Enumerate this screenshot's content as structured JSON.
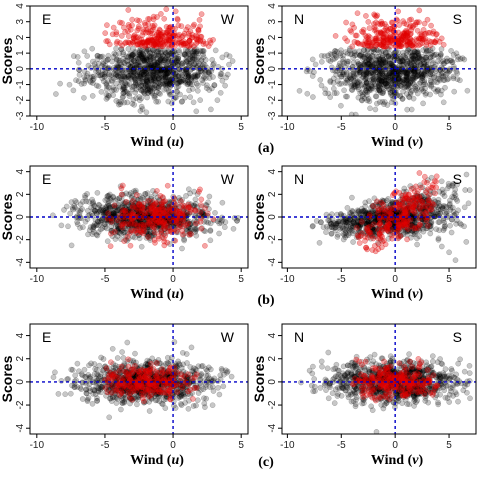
{
  "figure": {
    "rows": [
      {
        "label": "(a)"
      },
      {
        "label": "(b)"
      },
      {
        "label": "(c)"
      }
    ]
  },
  "colors": {
    "background_points": "#000000",
    "highlight_points": "#e00000",
    "reference_line": "#0000c8",
    "axis": "#000000"
  },
  "chart_data": [
    {
      "type": "scatter",
      "panel": "a-u",
      "xlabel_main": "Wind (",
      "xlabel_var": "u",
      "xlabel_end": ")",
      "ylabel": "Scores",
      "corner_left": "E",
      "corner_right": "W",
      "xlim": [
        -10.5,
        5.5
      ],
      "ylim": [
        -3,
        4
      ],
      "xticks": [
        -10,
        -5,
        0,
        5
      ],
      "yticks": [
        -3,
        -2,
        -1,
        0,
        1,
        2,
        3,
        4
      ],
      "reference_lines": {
        "x": 0,
        "y": 0
      },
      "series": [
        {
          "color": "black",
          "x_range": [
            -9,
            4.8
          ],
          "center_x": -1.5,
          "center_y": 0
        },
        {
          "color": "red",
          "x_range": [
            -5,
            3
          ],
          "center_x": -1,
          "center_y": 2.3
        }
      ]
    },
    {
      "type": "scatter",
      "panel": "a-v",
      "xlabel_main": "Wind (",
      "xlabel_var": "v",
      "xlabel_end": ")",
      "ylabel": "Scores",
      "corner_left": "N",
      "corner_right": "S",
      "xlim": [
        -10.5,
        7.5
      ],
      "ylim": [
        -3,
        4
      ],
      "xticks": [
        -10,
        -5,
        0,
        5
      ],
      "yticks": [
        -3,
        -2,
        -1,
        0,
        1,
        2,
        3,
        4
      ],
      "reference_lines": {
        "x": 0,
        "y": 0
      },
      "series": [
        {
          "color": "black",
          "x_range": [
            -9,
            7
          ],
          "center_x": -0.5,
          "center_y": 0
        },
        {
          "color": "red",
          "x_range": [
            -6,
            5
          ],
          "center_x": 0,
          "center_y": 2.3
        }
      ]
    },
    {
      "type": "scatter",
      "panel": "b-u",
      "xlabel_main": "Wind (",
      "xlabel_var": "u",
      "xlabel_end": ")",
      "ylabel": "Scores",
      "corner_left": "E",
      "corner_right": "W",
      "xlim": [
        -10.5,
        5.5
      ],
      "ylim": [
        -4.5,
        4.5
      ],
      "xticks": [
        -10,
        -5,
        0,
        5
      ],
      "yticks": [
        -4,
        -2,
        0,
        2,
        4
      ],
      "reference_lines": {
        "x": 0,
        "y": 0
      },
      "series": [
        {
          "color": "black",
          "x_range": [
            -9,
            4.8
          ],
          "center_x": -2,
          "center_y": 0
        },
        {
          "color": "red",
          "x_range": [
            -5,
            3
          ],
          "center_x": -1.5,
          "center_y": 0
        }
      ]
    },
    {
      "type": "scatter",
      "panel": "b-v",
      "xlabel_main": "Wind (",
      "xlabel_var": "v",
      "xlabel_end": ")",
      "ylabel": "Scores",
      "corner_left": "N",
      "corner_right": "S",
      "xlim": [
        -10.5,
        7.5
      ],
      "ylim": [
        -4.5,
        4.5
      ],
      "xticks": [
        -10,
        -5,
        0,
        5
      ],
      "yticks": [
        -4,
        -2,
        0,
        2,
        4
      ],
      "reference_lines": {
        "x": 0,
        "y": 0
      },
      "series": [
        {
          "color": "black",
          "x_range": [
            -9,
            7
          ],
          "center_x": 0,
          "center_y": 0
        },
        {
          "color": "red",
          "x_range": [
            -4,
            4
          ],
          "center_x": 0.5,
          "center_y": 0
        }
      ]
    },
    {
      "type": "scatter",
      "panel": "c-u",
      "xlabel_main": "Wind (",
      "xlabel_var": "u",
      "xlabel_end": ")",
      "ylabel": "Scores",
      "corner_left": "E",
      "corner_right": "W",
      "xlim": [
        -10.5,
        5.5
      ],
      "ylim": [
        -4.5,
        5
      ],
      "xticks": [
        -10,
        -5,
        0,
        5
      ],
      "yticks": [
        -4,
        -2,
        0,
        2,
        4
      ],
      "reference_lines": {
        "x": 0,
        "y": 0
      },
      "series": [
        {
          "color": "black",
          "x_range": [
            -9,
            4.8
          ],
          "center_x": -2,
          "center_y": 0
        },
        {
          "color": "red",
          "x_range": [
            -5,
            2
          ],
          "center_x": -2,
          "center_y": 0
        }
      ]
    },
    {
      "type": "scatter",
      "panel": "c-v",
      "xlabel_main": "Wind (",
      "xlabel_var": "v",
      "xlabel_end": ")",
      "ylabel": "Scores",
      "corner_left": "N",
      "corner_right": "S",
      "xlim": [
        -10.5,
        7.5
      ],
      "ylim": [
        -4.5,
        5
      ],
      "xticks": [
        -10,
        -5,
        0,
        5
      ],
      "yticks": [
        -4,
        -2,
        0,
        2,
        4
      ],
      "reference_lines": {
        "x": 0,
        "y": 0
      },
      "series": [
        {
          "color": "black",
          "x_range": [
            -9,
            7
          ],
          "center_x": 0,
          "center_y": 0
        },
        {
          "color": "red",
          "x_range": [
            -4,
            4
          ],
          "center_x": 0,
          "center_y": 0
        }
      ]
    }
  ]
}
